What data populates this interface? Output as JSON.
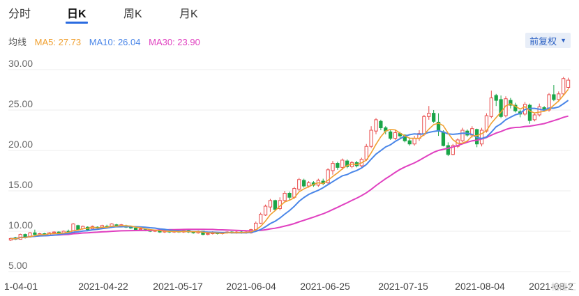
{
  "tabs": [
    {
      "label": "分时",
      "active": false
    },
    {
      "label": "日K",
      "active": true
    },
    {
      "label": "周K",
      "active": false
    },
    {
      "label": "月K",
      "active": false
    }
  ],
  "ma_legend": {
    "title": "均线",
    "ma5": {
      "label": "MA5: 27.73",
      "color": "#f0a030"
    },
    "ma10": {
      "label": "MA10: 26.04",
      "color": "#4a86e8"
    },
    "ma30": {
      "label": "MA30: 23.90",
      "color": "#e040c0"
    }
  },
  "adjust_button": {
    "label": "前复权",
    "icon": "caret-down-icon"
  },
  "watermark": "格隆汇",
  "colors": {
    "up": "#e84a4a",
    "down": "#1aa548",
    "accent": "#2a6be0"
  },
  "chart_data": {
    "type": "candlestick",
    "y_ticks": [
      "30.00",
      "25.00",
      "20.00",
      "15.00",
      "10.00",
      "5.00"
    ],
    "ylim": [
      5,
      30
    ],
    "x_ticks": [
      "1-04-01",
      "2021-04-22",
      "2021-05-17",
      "2021-06-04",
      "2021-06-25",
      "2021-07-15",
      "2021-08-04",
      "2021-08-2"
    ],
    "grid": true,
    "candles": [
      [
        8.9,
        9.1,
        8.8,
        9.2
      ],
      [
        9.2,
        9.0,
        8.9,
        9.3
      ],
      [
        9.0,
        9.6,
        9.0,
        9.7
      ],
      [
        9.6,
        9.2,
        9.1,
        9.7
      ],
      [
        9.3,
        9.8,
        9.2,
        9.9
      ],
      [
        9.8,
        9.6,
        9.5,
        10.2
      ],
      [
        9.5,
        9.7,
        9.4,
        9.8
      ],
      [
        9.7,
        9.5,
        9.4,
        9.8
      ],
      [
        9.5,
        9.8,
        9.4,
        9.9
      ],
      [
        9.8,
        9.9,
        9.7,
        10.0
      ],
      [
        9.9,
        9.7,
        9.6,
        10.0
      ],
      [
        9.7,
        10.0,
        9.6,
        10.1
      ],
      [
        10.0,
        9.9,
        9.8,
        10.2
      ],
      [
        9.8,
        10.9,
        9.8,
        11.0
      ],
      [
        10.7,
        10.2,
        10.1,
        10.8
      ],
      [
        10.3,
        10.6,
        10.2,
        10.7
      ],
      [
        10.5,
        10.2,
        10.1,
        10.6
      ],
      [
        10.3,
        10.6,
        10.2,
        10.7
      ],
      [
        10.5,
        10.4,
        10.3,
        10.6
      ],
      [
        10.4,
        10.7,
        10.3,
        10.8
      ],
      [
        10.6,
        10.5,
        10.4,
        10.8
      ],
      [
        10.5,
        10.9,
        10.4,
        11.0
      ],
      [
        10.8,
        10.6,
        10.5,
        10.9
      ],
      [
        10.6,
        10.8,
        10.5,
        10.9
      ],
      [
        10.7,
        10.5,
        10.4,
        10.8
      ],
      [
        10.5,
        10.4,
        10.3,
        10.6
      ],
      [
        10.4,
        10.2,
        10.1,
        10.5
      ],
      [
        10.2,
        10.3,
        10.1,
        10.4
      ],
      [
        10.2,
        10.1,
        10.0,
        10.3
      ],
      [
        10.1,
        10.0,
        9.9,
        10.2
      ],
      [
        10.0,
        10.1,
        9.9,
        10.2
      ],
      [
        10.0,
        9.9,
        9.8,
        10.1
      ],
      [
        9.9,
        10.0,
        9.8,
        10.1
      ],
      [
        10.0,
        9.9,
        9.8,
        10.0
      ],
      [
        9.9,
        10.0,
        9.8,
        10.1
      ],
      [
        10.0,
        9.9,
        9.8,
        10.0
      ],
      [
        9.9,
        10.1,
        9.8,
        10.2
      ],
      [
        10.1,
        9.9,
        9.8,
        10.2
      ],
      [
        9.9,
        9.8,
        9.7,
        10.0
      ],
      [
        9.8,
        10.0,
        9.7,
        10.1
      ],
      [
        10.0,
        9.6,
        9.5,
        10.0
      ],
      [
        9.6,
        9.7,
        9.5,
        9.8
      ],
      [
        9.7,
        9.9,
        9.6,
        10.0
      ],
      [
        9.8,
        9.7,
        9.6,
        9.9
      ],
      [
        9.7,
        9.8,
        9.6,
        9.9
      ],
      [
        9.8,
        9.9,
        9.7,
        10.0
      ],
      [
        9.9,
        9.8,
        9.7,
        10.0
      ],
      [
        9.8,
        9.9,
        9.7,
        10.0
      ],
      [
        9.9,
        9.8,
        9.7,
        10.0
      ],
      [
        9.8,
        9.9,
        9.7,
        10.0
      ],
      [
        9.8,
        10.2,
        9.7,
        10.3
      ],
      [
        10.2,
        11.0,
        10.1,
        11.2
      ],
      [
        11.0,
        12.1,
        10.9,
        12.3
      ],
      [
        12.0,
        13.1,
        11.9,
        13.3
      ],
      [
        13.0,
        13.8,
        12.4,
        14.0
      ],
      [
        13.8,
        12.7,
        12.5,
        13.9
      ],
      [
        12.8,
        13.8,
        12.6,
        14.2
      ],
      [
        13.8,
        14.7,
        13.6,
        15.0
      ],
      [
        14.7,
        14.2,
        13.8,
        14.9
      ],
      [
        14.2,
        15.3,
        14.0,
        15.5
      ],
      [
        15.2,
        16.4,
        15.0,
        16.6
      ],
      [
        16.3,
        15.6,
        15.4,
        16.5
      ],
      [
        15.6,
        16.0,
        15.4,
        16.2
      ],
      [
        16.0,
        15.7,
        15.5,
        16.2
      ],
      [
        15.7,
        16.3,
        15.5,
        16.5
      ],
      [
        16.2,
        15.9,
        15.7,
        16.5
      ],
      [
        16.0,
        17.6,
        15.8,
        17.8
      ],
      [
        17.5,
        18.4,
        17.0,
        18.7
      ],
      [
        18.4,
        17.9,
        17.6,
        18.6
      ],
      [
        17.9,
        18.8,
        17.6,
        19.0
      ],
      [
        18.7,
        18.0,
        17.8,
        18.9
      ],
      [
        18.0,
        18.5,
        17.8,
        18.7
      ],
      [
        18.5,
        18.1,
        17.9,
        18.7
      ],
      [
        18.1,
        18.9,
        17.9,
        19.1
      ],
      [
        18.9,
        20.5,
        18.7,
        20.8
      ],
      [
        20.5,
        22.5,
        20.3,
        23.0
      ],
      [
        22.4,
        23.8,
        22.0,
        24.0
      ],
      [
        23.6,
        22.8,
        22.5,
        23.8
      ],
      [
        22.8,
        22.4,
        22.0,
        23.0
      ],
      [
        22.3,
        21.5,
        21.3,
        22.5
      ],
      [
        21.5,
        22.2,
        21.3,
        22.5
      ],
      [
        22.1,
        21.8,
        21.5,
        22.3
      ],
      [
        21.9,
        21.2,
        21.0,
        22.0
      ],
      [
        21.2,
        20.8,
        20.6,
        21.6
      ],
      [
        20.8,
        21.5,
        20.6,
        21.8
      ],
      [
        21.5,
        22.1,
        21.2,
        22.5
      ],
      [
        22.0,
        24.2,
        21.8,
        24.4
      ],
      [
        24.2,
        24.6,
        23.8,
        25.5
      ],
      [
        24.6,
        23.6,
        23.4,
        25.0
      ],
      [
        23.5,
        22.4,
        21.8,
        24.6
      ],
      [
        22.3,
        20.6,
        20.5,
        22.5
      ],
      [
        20.6,
        19.5,
        19.3,
        21.0
      ],
      [
        19.5,
        20.6,
        19.4,
        20.8
      ],
      [
        20.5,
        21.3,
        20.3,
        21.5
      ],
      [
        21.2,
        22.5,
        21.0,
        22.8
      ],
      [
        22.4,
        21.9,
        21.7,
        22.6
      ],
      [
        21.9,
        22.7,
        21.6,
        23.0
      ],
      [
        22.6,
        20.8,
        20.4,
        22.7
      ],
      [
        20.8,
        22.5,
        20.5,
        22.8
      ],
      [
        22.4,
        24.3,
        22.2,
        24.6
      ],
      [
        24.2,
        26.5,
        24.0,
        27.4
      ],
      [
        26.8,
        26.2,
        25.5,
        27.0
      ],
      [
        26.3,
        24.2,
        24.0,
        26.8
      ],
      [
        24.3,
        26.4,
        24.1,
        26.7
      ],
      [
        26.2,
        25.6,
        25.2,
        26.5
      ],
      [
        25.6,
        24.9,
        24.7,
        25.9
      ],
      [
        24.8,
        24.5,
        24.1,
        25.0
      ],
      [
        24.5,
        25.7,
        24.3,
        26.0
      ],
      [
        25.6,
        23.7,
        23.3,
        25.8
      ],
      [
        23.8,
        24.4,
        23.6,
        24.7
      ],
      [
        24.4,
        25.4,
        24.2,
        25.8
      ],
      [
        25.3,
        25.0,
        24.8,
        25.5
      ],
      [
        25.0,
        26.9,
        24.8,
        27.1
      ],
      [
        26.9,
        26.3,
        26.1,
        28.1
      ],
      [
        26.3,
        27.0,
        26.0,
        27.3
      ],
      [
        27.0,
        28.9,
        26.8,
        29.1
      ],
      [
        27.8,
        28.7,
        27.6,
        29.0
      ]
    ]
  }
}
